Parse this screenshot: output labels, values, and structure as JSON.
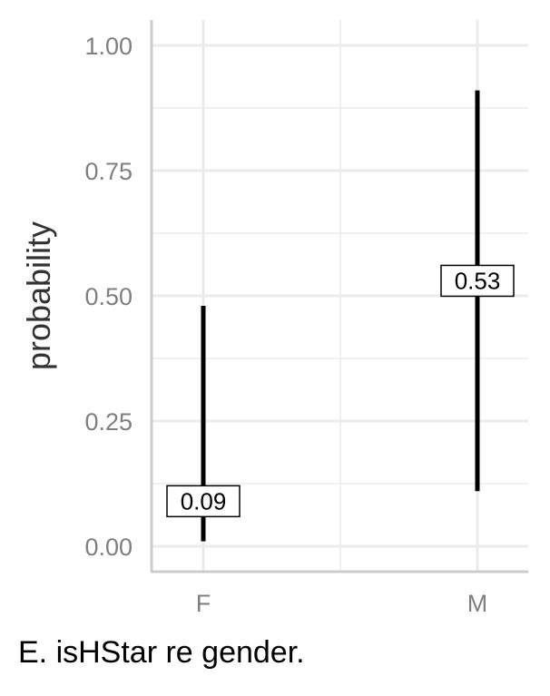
{
  "chart_data": {
    "type": "errorbar",
    "categories": [
      "F",
      "M"
    ],
    "series": [
      {
        "estimates": [
          0.09,
          0.53
        ],
        "lower": [
          0.01,
          0.11
        ],
        "upper": [
          0.48,
          0.91
        ],
        "labels": [
          "0.09",
          "0.53"
        ]
      }
    ],
    "ylabel": "probability",
    "xlabel": "",
    "ylim": [
      -0.05,
      1.05
    ],
    "yticks": [
      0.0,
      0.25,
      0.5,
      0.75,
      1.0
    ],
    "ytick_labels": [
      "0.00",
      "0.25",
      "0.50",
      "0.75",
      "1.00"
    ],
    "grid": true,
    "colors": {
      "bar": "#000000",
      "grid": "#ebebeb",
      "axis": "#cccccc",
      "tick_text": "#7f7f7f"
    }
  },
  "caption": "E. isHStar re gender."
}
